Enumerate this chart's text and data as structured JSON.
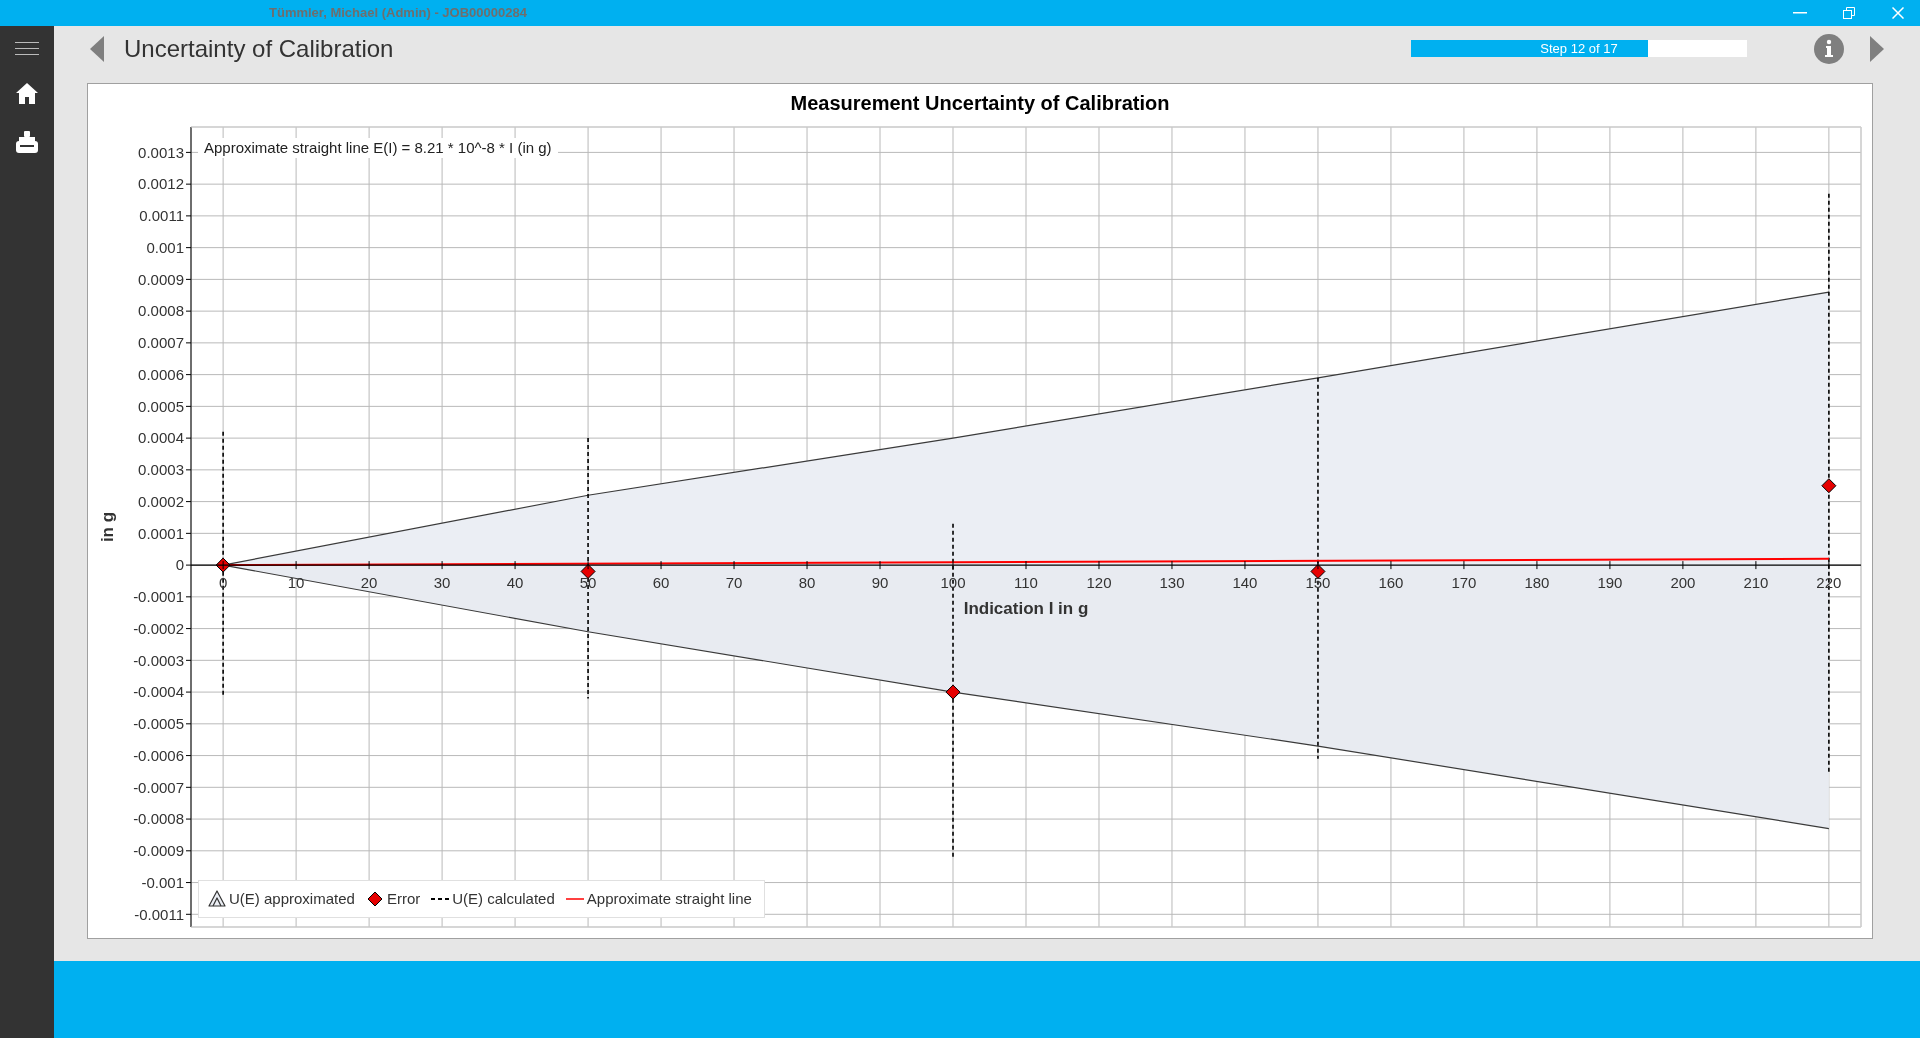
{
  "chart_data": {
    "type": "scatter",
    "title": "Measurement Uncertainty of Calibration",
    "xlabel": "Indication I in g",
    "ylabel": "in g",
    "annotations": [
      "Approximate straight line E(I) = 8.21 * 10^-8 * I (in g)",
      "Uncertainty of Calibration",
      "Step 12 of 17",
      "Tümmler, Michael (Admin) - JOB00000284"
    ],
    "x": [
      0,
      50,
      100,
      150,
      220
    ],
    "series": [
      {
        "name": "U(E) approximated",
        "type": "area",
        "color": "#ebeef4",
        "values": [
          0,
          0.00022,
          0.0004,
          0.00059,
          0.00086
        ]
      },
      {
        "type": "area",
        "color": "#e8ebf1",
        "values": [
          0,
          -0.00021,
          -0.0004,
          -0.00057,
          -0.00083
        ]
      },
      {
        "name": "Error",
        "color": "#e60000",
        "marker": "diamond",
        "values": [
          0,
          -2e-05,
          -0.0004,
          -2e-05,
          0.00025
        ]
      },
      {
        "name": "U(E) calculated",
        "type": "line",
        "color": "#000000",
        "marker": "none",
        "line_style": "dashed",
        "x": [
          0,
          0,
          null,
          50,
          50,
          null,
          100,
          100,
          null,
          150,
          150,
          null,
          220,
          220
        ],
        "values": [
          0.00042,
          -0.00041,
          null,
          0.0004,
          -0.00042,
          null,
          0.00013,
          -0.00092,
          null,
          0.00059,
          -0.00061,
          null,
          0.00117,
          -0.00066
        ]
      },
      {
        "name": "Approximate straight line",
        "type": "line",
        "color": "#ff0000",
        "marker": "none",
        "x": [
          0,
          220
        ],
        "values": [
          0,
          2e-05
        ]
      }
    ],
    "xlim": [
      -4.4,
      224.4
    ],
    "xticks": [
      0,
      10,
      20,
      30,
      40,
      50,
      60,
      70,
      80,
      90,
      100,
      110,
      120,
      130,
      140,
      150,
      160,
      170,
      180,
      190,
      200,
      210,
      220
    ],
    "ylim": [
      -0.00114,
      0.00138
    ],
    "yticks": [
      -0.0011,
      -0.001,
      -0.0009,
      -0.0008,
      -0.0007,
      -0.0006,
      -0.0005,
      -0.0004,
      -0.0003,
      -0.0002,
      -0.0001,
      0,
      0.0001,
      0.0002,
      0.0003,
      0.0004,
      0.0005,
      0.0006,
      0.0007,
      0.0008,
      0.0009,
      0.001,
      0.0011,
      0.0012,
      0.0013
    ],
    "grid": true,
    "legend": "bottom left"
  }
}
